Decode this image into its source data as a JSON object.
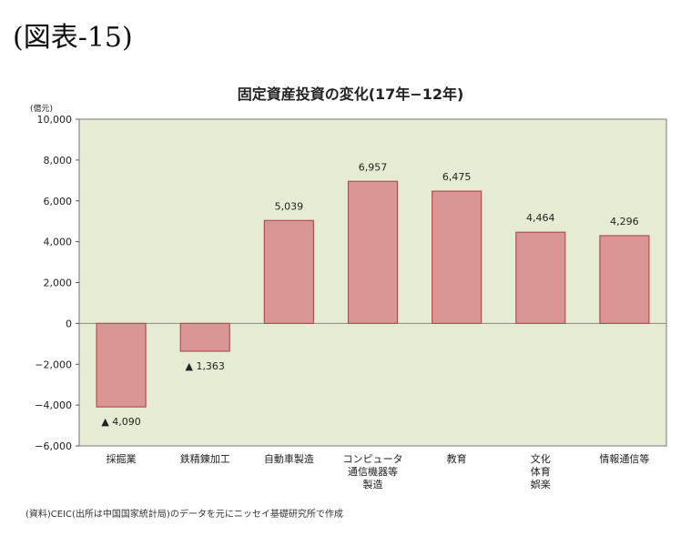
{
  "figure_label": "(図表-15)",
  "source_note": "(資料)CEIC(出所は中国国家統計局)のデータを元にニッセイ基礎研究所で作成",
  "colors": {
    "plot_bg": "#e6ecd3",
    "bar_fill": "#d99694",
    "bar_stroke": "#b0504d",
    "zero_line": "#888888"
  },
  "chart_data": {
    "type": "bar",
    "title": "固定資産投資の変化(17年−12年)",
    "ylabel": "(億元)",
    "ylim": [
      -6000,
      10000
    ],
    "yticks": [
      -6000,
      -4000,
      -2000,
      0,
      2000,
      4000,
      6000,
      8000,
      10000
    ],
    "ytick_labels": [
      "−6,000",
      "−4,000",
      "−2,000",
      "0",
      "2,000",
      "4,000",
      "6,000",
      "8,000",
      "10,000"
    ],
    "grid": false,
    "categories": [
      [
        "採掘業"
      ],
      [
        "鉄精錬加工"
      ],
      [
        "自動車製造"
      ],
      [
        "コンピュータ",
        "通信機器等",
        "製造"
      ],
      [
        "教育"
      ],
      [
        "文化",
        "体育",
        "娯楽"
      ],
      [
        "情報通信等"
      ]
    ],
    "values": [
      -4090,
      -1363,
      5039,
      6957,
      6475,
      4464,
      4296
    ],
    "data_labels": [
      "▲ 4,090",
      "▲ 1,363",
      "5,039",
      "6,957",
      "6,475",
      "4,464",
      "4,296"
    ]
  }
}
